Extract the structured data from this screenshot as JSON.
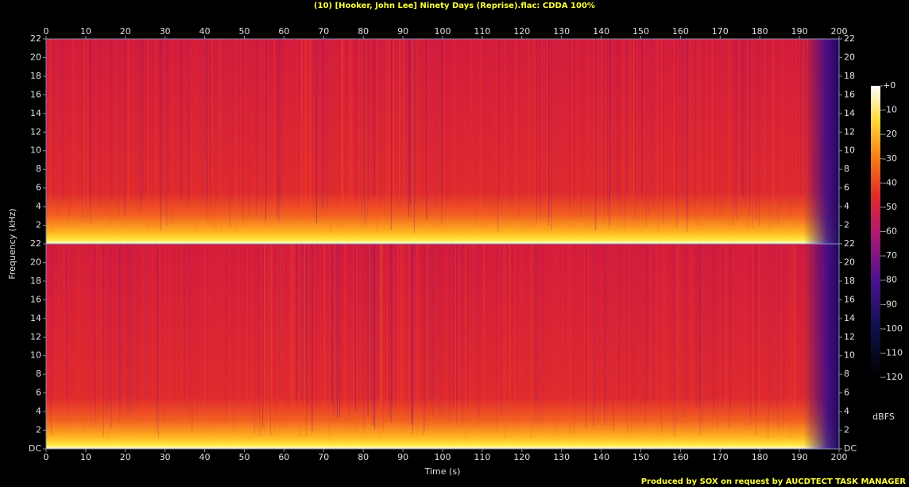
{
  "chart_data": {
    "type": "spectrogram",
    "title": "(10) [Hooker, John Lee] Ninety Days (Reprise).flac: CDDA 100%",
    "x_label": "Time (s)",
    "y_label": "Frequency (kHz)",
    "xlim": [
      0,
      200
    ],
    "xticks": [
      0,
      10,
      20,
      30,
      40,
      50,
      60,
      70,
      80,
      90,
      100,
      110,
      120,
      130,
      140,
      150,
      160,
      170,
      180,
      190,
      200
    ],
    "channels": [
      {
        "ylim": [
          0,
          22
        ],
        "yticks": [
          2,
          4,
          6,
          8,
          10,
          12,
          14,
          16,
          18,
          20,
          22
        ]
      },
      {
        "ylim": [
          0,
          22
        ],
        "yticks": [
          {
            "value": 0,
            "label": "DC"
          },
          2,
          4,
          6,
          8,
          10,
          12,
          14,
          16,
          18,
          20,
          22
        ]
      }
    ],
    "colorbar": {
      "zlim": [
        -120,
        0
      ],
      "zticks": [
        {
          "value": 0,
          "label": "+0"
        },
        -10,
        -20,
        -30,
        -40,
        -50,
        -60,
        -70,
        -80,
        -90,
        -100,
        -110,
        -120
      ],
      "label": "dBFS"
    },
    "footer": "Produced by SOX on request by AUCDTECT TASK MANAGER"
  }
}
